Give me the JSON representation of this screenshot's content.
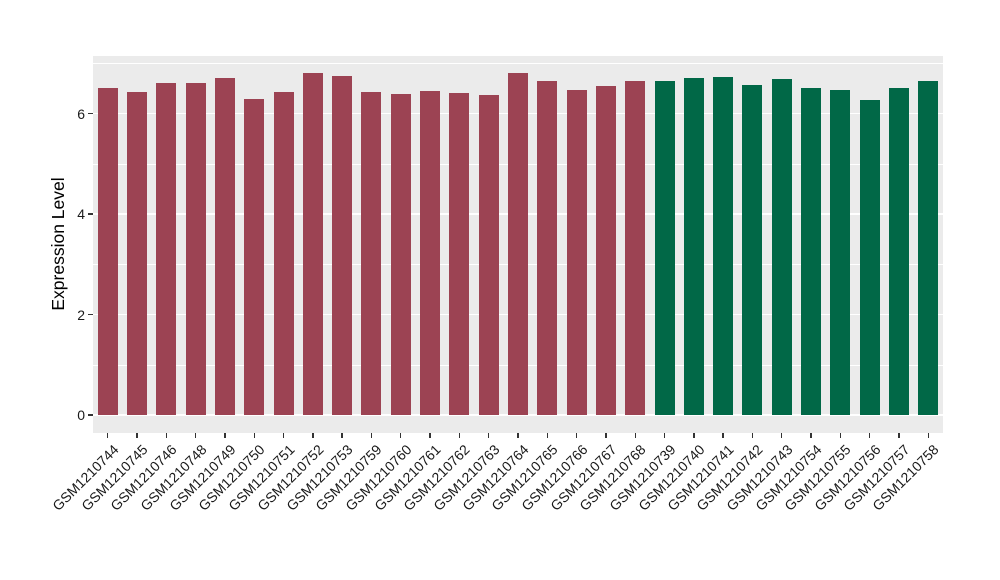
{
  "chart_data": {
    "type": "bar",
    "title": "",
    "xlabel": "",
    "ylabel": "Expression Level",
    "y_ticks": [
      0,
      2,
      4,
      6
    ],
    "y_minor_ticks": [
      1,
      3,
      5,
      7
    ],
    "ylim": [
      -0.36,
      7.14
    ],
    "grid": "white major and minor gridlines on gray panel",
    "legend_position": "none",
    "panel_background": "#EBEBEB",
    "gridline_color": "#FFFFFF",
    "axis_text_color": "#1a1a1a",
    "categories": [
      "GSM1210744",
      "GSM1210745",
      "GSM1210746",
      "GSM1210748",
      "GSM1210749",
      "GSM1210750",
      "GSM1210751",
      "GSM1210752",
      "GSM1210753",
      "GSM1210759",
      "GSM1210760",
      "GSM1210761",
      "GSM1210762",
      "GSM1210763",
      "GSM1210764",
      "GSM1210765",
      "GSM1210766",
      "GSM1210767",
      "GSM1210768",
      "GSM1210739",
      "GSM1210740",
      "GSM1210741",
      "GSM1210742",
      "GSM1210743",
      "GSM1210754",
      "GSM1210755",
      "GSM1210756",
      "GSM1210757",
      "GSM1210758"
    ],
    "values": [
      6.5,
      6.42,
      6.6,
      6.61,
      6.7,
      6.28,
      6.42,
      6.8,
      6.75,
      6.43,
      6.38,
      6.45,
      6.4,
      6.36,
      6.8,
      6.64,
      6.46,
      6.55,
      6.64,
      6.64,
      6.7,
      6.72,
      6.56,
      6.68,
      6.5,
      6.46,
      6.26,
      6.5,
      6.64
    ],
    "bar_groups": [
      "group1",
      "group1",
      "group1",
      "group1",
      "group1",
      "group1",
      "group1",
      "group1",
      "group1",
      "group1",
      "group1",
      "group1",
      "group1",
      "group1",
      "group1",
      "group1",
      "group1",
      "group1",
      "group1",
      "group2",
      "group2",
      "group2",
      "group2",
      "group2",
      "group2",
      "group2",
      "group2",
      "group2",
      "group2"
    ],
    "group_colors": {
      "group1": "#9C4353",
      "group2": "#016847"
    }
  }
}
